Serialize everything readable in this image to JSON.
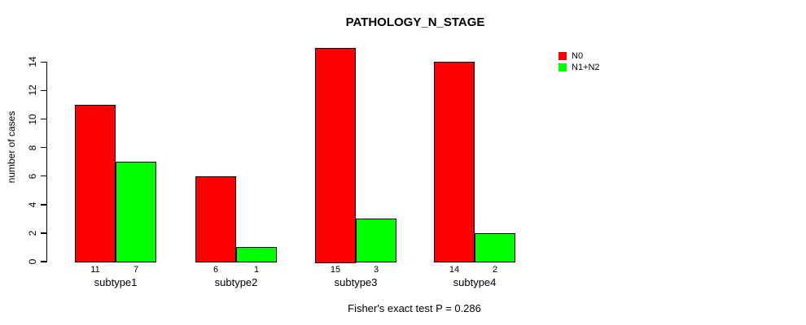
{
  "chart_data": {
    "type": "bar",
    "title": "PATHOLOGY_N_STAGE",
    "categories": [
      "subtype1",
      "subtype2",
      "subtype3",
      "subtype4"
    ],
    "series": [
      {
        "name": "N0",
        "color": "#ff0000",
        "values": [
          11,
          6,
          15,
          14
        ]
      },
      {
        "name": "N1+N2",
        "color": "#00ff00",
        "values": [
          7,
          1,
          3,
          2
        ]
      }
    ],
    "bar_value_labels": [
      [
        11,
        7
      ],
      [
        6,
        1
      ],
      [
        15,
        3
      ],
      [
        14,
        2
      ]
    ],
    "xlabel": "",
    "ylabel": "number of cases",
    "yticks": [
      0,
      2,
      4,
      6,
      8,
      10,
      12,
      14
    ],
    "ylim": [
      0,
      15
    ],
    "grid": false,
    "legend_position": "top-right",
    "annotation": "Fisher's exact test P = 0.286",
    "colors": {
      "background": "#ffffff",
      "axis": "#000000",
      "text": "#000000"
    }
  }
}
